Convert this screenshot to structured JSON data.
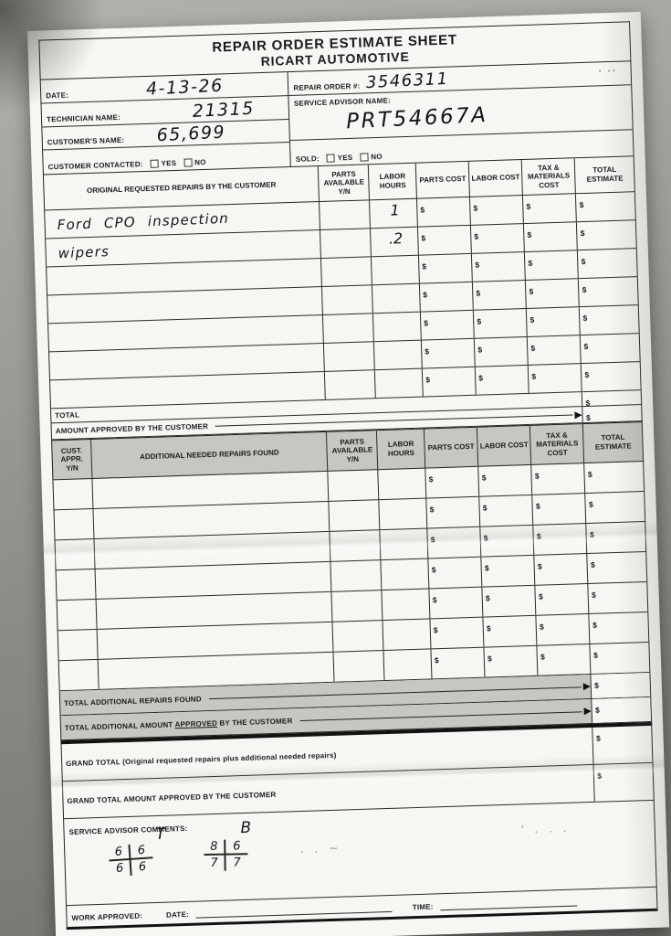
{
  "colors": {
    "background": "#928f8b",
    "paper": "#f7f6f2",
    "ink": "#1b1b1b",
    "shaded_row": "#c8c6c0"
  },
  "header": {
    "title_line1": "REPAIR ORDER ESTIMATE SHEET",
    "title_line2": "RICART AUTOMOTIVE"
  },
  "info": {
    "date_label": "DATE:",
    "date_value": "4-13-26",
    "technician_label": "TECHNICIAN NAME:",
    "technician_value": "21315",
    "customer_label": "CUSTOMER'S NAME:",
    "customer_value": "65,699",
    "contacted_label": "CUSTOMER CONTACTED:",
    "yes_label": "YES",
    "no_label": "NO",
    "repair_order_label": "REPAIR ORDER #:",
    "repair_order_value": "3546311",
    "service_advisor_label": "SERVICE ADVISOR NAME:",
    "service_advisor_value": "PRT54667A",
    "sold_label": "SOLD:",
    "stray_marks": "· ··"
  },
  "misc": {
    "dollar_sign": "$"
  },
  "table1": {
    "headers": [
      "ORIGINAL REQUESTED REPAIRS BY THE CUSTOMER",
      "PARTS AVAILABLE Y/N",
      "LABOR HOURS",
      "PARTS COST",
      "LABOR COST",
      "TAX & MATERIALS COST",
      "TOTAL ESTIMATE"
    ],
    "rows": [
      {
        "description": "Ford CPO inspection",
        "labor_hours": "1"
      },
      {
        "description": "wipers",
        "labor_hours": ".2"
      },
      {
        "description": "",
        "labor_hours": ""
      },
      {
        "description": "",
        "labor_hours": ""
      },
      {
        "description": "",
        "labor_hours": ""
      },
      {
        "description": "",
        "labor_hours": ""
      },
      {
        "description": "",
        "labor_hours": ""
      }
    ],
    "total_label": "TOTAL",
    "amount_approved_label": "AMOUNT APPROVED BY THE CUSTOMER"
  },
  "table2": {
    "headers": [
      "CUST. APPR. Y/N",
      "ADDITIONAL NEEDED REPAIRS FOUND",
      "PARTS AVAILABLE Y/N",
      "LABOR HOURS",
      "PARTS COST",
      "LABOR COST",
      "TAX & MATERIALS COST",
      "TOTAL ESTIMATE"
    ],
    "rows": [
      {
        "description": ""
      },
      {
        "description": ""
      },
      {
        "description": ""
      },
      {
        "description": ""
      },
      {
        "description": ""
      },
      {
        "description": ""
      },
      {
        "description": ""
      }
    ],
    "total_additional_label": "TOTAL ADDITIONAL REPAIRS FOUND",
    "total_additional_approved": {
      "pre": "TOTAL ADDITIONAL AMOUNT ",
      "underlined": "APPROVED",
      "post": " BY THE CUSTOMER"
    }
  },
  "totals": {
    "grand_total_label": "GRAND TOTAL (Original requested repairs plus additional needed repairs)",
    "grand_total_approved_label": "GRAND TOTAL AMOUNT APPROVED BY THE CUSTOMER"
  },
  "comments": {
    "label": "SERVICE ADVISOR COMMENTS:",
    "front_label": "T",
    "back_label": "B",
    "grid1": [
      "6",
      "6",
      "6",
      "6"
    ],
    "grid2": [
      "8",
      "6",
      "7",
      "7"
    ],
    "stray1": ". .  ~",
    "stray2": "' .  . ."
  },
  "footer": {
    "work_approved_label": "WORK APPROVED:",
    "date_label": "DATE:",
    "time_label": "TIME:"
  }
}
